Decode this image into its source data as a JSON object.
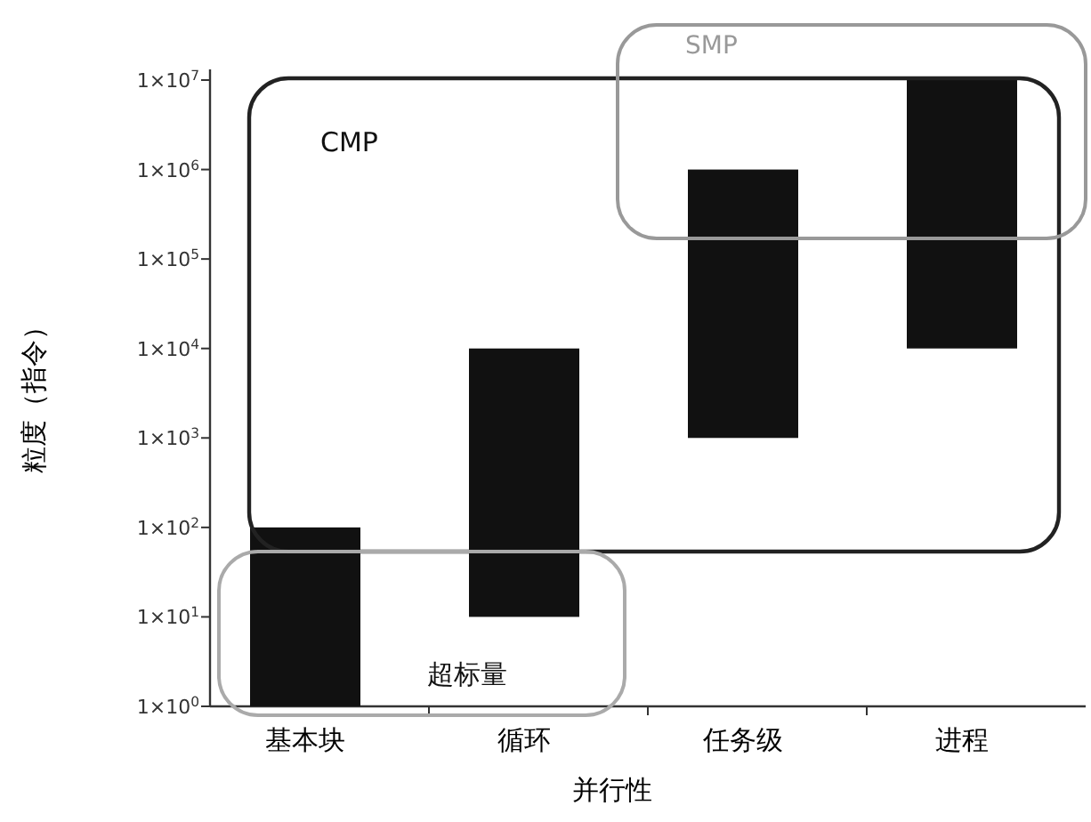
{
  "chart_data": {
    "type": "bar",
    "xlabel": "并行性",
    "ylabel": "粒度（指令）",
    "categories": [
      "基本块",
      "循环",
      "任务级",
      "进程"
    ],
    "base": [
      1,
      10,
      1000,
      10000
    ],
    "values": [
      99,
      9990,
      999000,
      9990000
    ],
    "color": "#111111",
    "log": true,
    "ylim": [
      1,
      10000000
    ],
    "yticks": [
      {
        "value": 1,
        "label": "1×10$^{0}$"
      },
      {
        "value": 10,
        "label": "1×10$^{1}$"
      },
      {
        "value": 100,
        "label": "1×10$^{2}$"
      },
      {
        "value": 1000,
        "label": "1×10$^{3}$"
      },
      {
        "value": 10000,
        "label": "1×10$^{4}$"
      },
      {
        "value": 100000,
        "label": "1×10$^{5}$"
      },
      {
        "value": 1000000,
        "label": "1×10$^{6}$"
      },
      {
        "value": 10000000,
        "label": "1×10$^{7}$"
      }
    ],
    "annotations": [
      "CMP",
      "SMP",
      "超标量"
    ]
  }
}
